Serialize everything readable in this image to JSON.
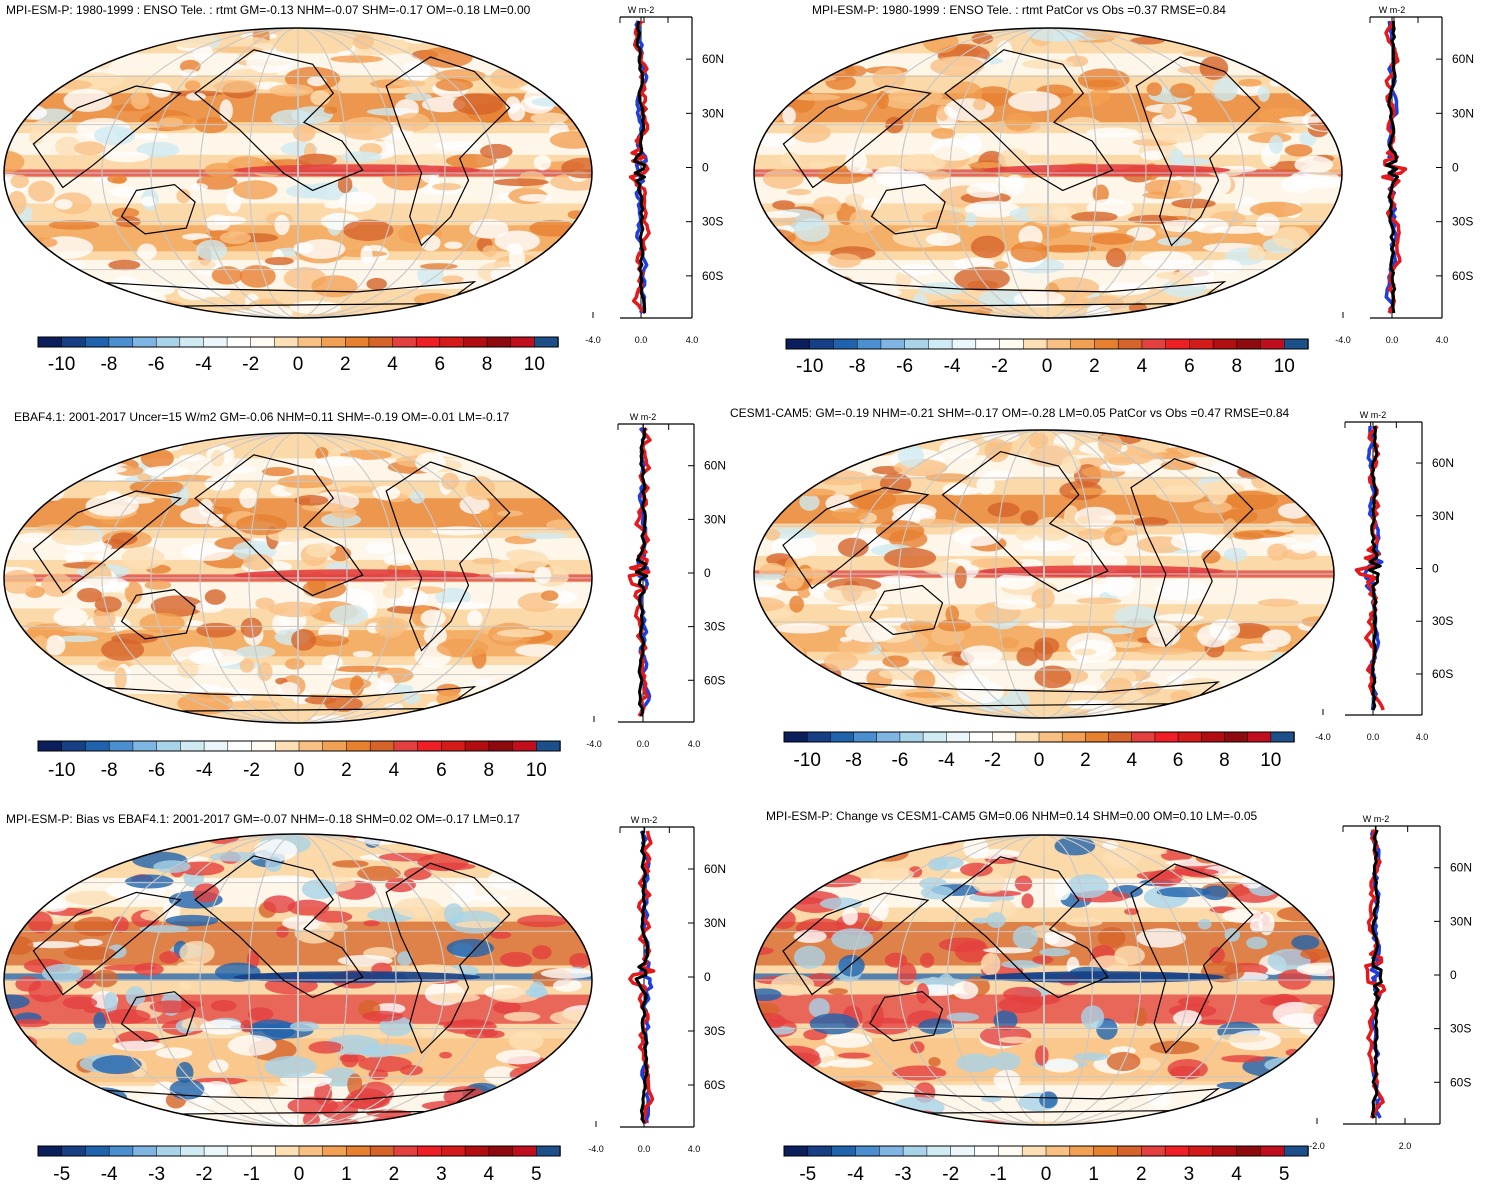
{
  "colorbar_palette": [
    "#0b1f5c",
    "#163f86",
    "#1f63ad",
    "#4c8fd1",
    "#7fb5e3",
    "#a8d3e9",
    "#d0ebf3",
    "#eaf6fa",
    "#ffffff",
    "#fffaf2",
    "#fde0b5",
    "#f9c083",
    "#f2a053",
    "#e7802f",
    "#d6642a",
    "#e3403f",
    "#f01f25",
    "#d51a1a",
    "#b20e12",
    "#8e0a0f",
    "#c00e1e",
    "#1d4f8a"
  ],
  "line_colors": {
    "model": "#e31a1c",
    "model_alt": "#1f3fdc",
    "obs": "#000000"
  },
  "panels": [
    {
      "title": "MPI-ESM-P: 1980-1999 : ENSO Tele. : rtmt GM=-0.13 NHM=-0.07 SHM=-0.17 OM=-0.18 LM=0.00",
      "profile_unit": "W m-2",
      "lat_labels": [
        "60N",
        "30N",
        "0",
        "30S",
        "60S"
      ],
      "profile_xticks": [
        "-4.0",
        "0.0",
        "4.0"
      ],
      "colorbar_ticks": [
        "-10",
        "-8",
        "-6",
        "-4",
        "-2",
        "0",
        "2",
        "4",
        "6",
        "8",
        "10"
      ]
    },
    {
      "title": "MPI-ESM-P: 1980-1999 : ENSO Tele. : rtmt PatCor vs Obs =0.37 RMSE=0.84",
      "profile_unit": "W m-2",
      "lat_labels": [
        "60N",
        "30N",
        "0",
        "30S",
        "60S"
      ],
      "profile_xticks": [
        "-4.0",
        "0.0",
        "4.0"
      ],
      "colorbar_ticks": [
        "-10",
        "-8",
        "-6",
        "-4",
        "-2",
        "0",
        "2",
        "4",
        "6",
        "8",
        "10"
      ]
    },
    {
      "title": "EBAF4.1: 2001-2017 Uncer=15 W/m2 GM=-0.06 NHM=0.11 SHM=-0.19 OM=-0.01 LM=-0.17",
      "profile_unit": "W m-2",
      "lat_labels": [
        "60N",
        "30N",
        "0",
        "30S",
        "60S"
      ],
      "profile_xticks": [
        "-4.0",
        "0.0",
        "4.0"
      ],
      "colorbar_ticks": [
        "-10",
        "-8",
        "-6",
        "-4",
        "-2",
        "0",
        "2",
        "4",
        "6",
        "8",
        "10"
      ]
    },
    {
      "title": "CESM1-CAM5: GM=-0.19 NHM=-0.21 SHM=-0.17 OM=-0.28 LM=0.05 PatCor vs Obs =0.47 RMSE=0.84",
      "profile_unit": "W m-2",
      "lat_labels": [
        "60N",
        "30N",
        "0",
        "30S",
        "60S"
      ],
      "profile_xticks": [
        "-4.0",
        "0.0",
        "4.0"
      ],
      "colorbar_ticks": [
        "-10",
        "-8",
        "-6",
        "-4",
        "-2",
        "0",
        "2",
        "4",
        "6",
        "8",
        "10"
      ]
    },
    {
      "title": "MPI-ESM-P: Bias vs EBAF4.1: 2001-2017 GM=-0.07 NHM=-0.18 SHM=0.02 OM=-0.17 LM=0.17",
      "profile_unit": "W m-2",
      "lat_labels": [
        "60N",
        "30N",
        "0",
        "30S",
        "60S"
      ],
      "profile_xticks": [
        "-4.0",
        "0.0",
        "4.0"
      ],
      "colorbar_ticks": [
        "-5",
        "-4",
        "-3",
        "-2",
        "-1",
        "0",
        "1",
        "2",
        "3",
        "4",
        "5"
      ]
    },
    {
      "title": "MPI-ESM-P: Change vs CESM1-CAM5 GM=0.06 NHM=0.14 SHM=0.00 OM=0.10 LM=-0.05",
      "profile_unit": "W m-2",
      "lat_labels": [
        "60N",
        "30N",
        "0",
        "30S",
        "60S"
      ],
      "profile_xticks": [
        "-2.0",
        "2.0"
      ],
      "colorbar_ticks": [
        "-5",
        "-4",
        "-3",
        "-2",
        "-1",
        "0",
        "1",
        "2",
        "3",
        "4",
        "5"
      ]
    }
  ],
  "chart_data": [
    {
      "type": "heatmap",
      "title": "MPI-ESM-P: 1980-1999 : ENSO Tele. : rtmt GM=-0.13 NHM=-0.07 SHM=-0.17 OM=-0.18 LM=0.00",
      "colorbar_range": [
        -10,
        10
      ],
      "profile_xlim": [
        -4,
        4
      ]
    },
    {
      "type": "heatmap",
      "title": "MPI-ESM-P: 1980-1999 : ENSO Tele. : rtmt PatCor vs Obs =0.37 RMSE=0.84",
      "colorbar_range": [
        -10,
        10
      ],
      "profile_xlim": [
        -4,
        4
      ]
    },
    {
      "type": "heatmap",
      "title": "EBAF4.1: 2001-2017 Uncer=15 W/m2 GM=-0.06 NHM=0.11 SHM=-0.19 OM=-0.01 LM=-0.17",
      "colorbar_range": [
        -10,
        10
      ],
      "profile_xlim": [
        -4,
        4
      ]
    },
    {
      "type": "heatmap",
      "title": "CESM1-CAM5: GM=-0.19 NHM=-0.21 SHM=-0.17 OM=-0.28 LM=0.05 PatCor vs Obs =0.47 RMSE=0.84",
      "colorbar_range": [
        -10,
        10
      ],
      "profile_xlim": [
        -4,
        4
      ]
    },
    {
      "type": "heatmap",
      "title": "MPI-ESM-P: Bias vs EBAF4.1: 2001-2017 GM=-0.07 NHM=-0.18 SHM=0.02 OM=-0.17 LM=0.17",
      "colorbar_range": [
        -5,
        5
      ],
      "profile_xlim": [
        -4,
        4
      ]
    },
    {
      "type": "heatmap",
      "title": "MPI-ESM-P: Change vs CESM1-CAM5 GM=0.06 NHM=0.14 SHM=0.00 OM=0.10 LM=-0.05",
      "colorbar_range": [
        -5,
        5
      ],
      "profile_xlim": [
        -2,
        2
      ]
    }
  ]
}
